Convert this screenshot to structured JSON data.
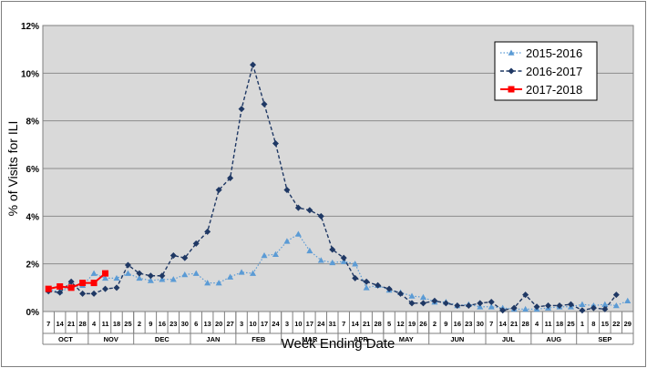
{
  "chart_data": {
    "type": "line",
    "ylabel": "% of Visits for ILI",
    "xlabel": "Week Ending Date",
    "ylim": [
      0,
      12
    ],
    "yticks": [
      0,
      2,
      4,
      6,
      8,
      10,
      12
    ],
    "ytick_labels": [
      "0%",
      "2%",
      "4%",
      "6%",
      "8%",
      "10%",
      "12%"
    ],
    "grid": true,
    "plot_background": "#d9d9d9",
    "legend_position": "top-right",
    "week_labels": [
      "7",
      "14",
      "21",
      "28",
      "4",
      "11",
      "18",
      "25",
      "2",
      "9",
      "16",
      "23",
      "30",
      "6",
      "13",
      "20",
      "27",
      "3",
      "10",
      "17",
      "24",
      "3",
      "10",
      "17",
      "24",
      "31",
      "7",
      "14",
      "21",
      "28",
      "5",
      "12",
      "19",
      "26",
      "2",
      "9",
      "16",
      "23",
      "30",
      "7",
      "14",
      "21",
      "28",
      "4",
      "11",
      "18",
      "25",
      "1",
      "8",
      "15",
      "22",
      "29"
    ],
    "month_labels": [
      {
        "label": "OCT",
        "start": 0,
        "span": 4
      },
      {
        "label": "NOV",
        "start": 4,
        "span": 4
      },
      {
        "label": "DEC",
        "start": 8,
        "span": 5
      },
      {
        "label": "JAN",
        "start": 13,
        "span": 4
      },
      {
        "label": "FEB",
        "start": 17,
        "span": 4
      },
      {
        "label": "MAR",
        "start": 21,
        "span": 5
      },
      {
        "label": "APR",
        "start": 26,
        "span": 4
      },
      {
        "label": "MAY",
        "start": 30,
        "span": 4
      },
      {
        "label": "JUN",
        "start": 34,
        "span": 5
      },
      {
        "label": "JUL",
        "start": 39,
        "span": 4
      },
      {
        "label": "AUG",
        "start": 43,
        "span": 4
      },
      {
        "label": "SEP",
        "start": 47,
        "span": 5
      }
    ],
    "series": [
      {
        "name": "2015-2016",
        "color": "#5b9bd5",
        "marker": "triangle",
        "line": "dotted",
        "values": [
          0.9,
          0.85,
          1.0,
          1.1,
          1.6,
          1.4,
          1.4,
          1.6,
          1.4,
          1.3,
          1.35,
          1.35,
          1.55,
          1.6,
          1.2,
          1.2,
          1.45,
          1.65,
          1.6,
          2.35,
          2.4,
          2.95,
          3.25,
          2.55,
          2.15,
          2.05,
          2.1,
          2.0,
          1.0,
          1.1,
          0.9,
          0.8,
          0.65,
          0.6,
          0.4,
          0.4,
          0.25,
          0.3,
          0.2,
          0.2,
          0.15,
          0.1,
          0.1,
          0.1,
          0.15,
          0.2,
          0.2,
          0.3,
          0.25,
          0.3,
          0.25,
          0.45
        ]
      },
      {
        "name": "2016-2017",
        "color": "#1f3864",
        "marker": "diamond",
        "line": "dashed",
        "values": [
          0.85,
          0.8,
          1.25,
          0.75,
          0.75,
          0.95,
          1.0,
          1.95,
          1.6,
          1.5,
          1.5,
          2.35,
          2.25,
          2.85,
          3.35,
          5.1,
          5.6,
          8.5,
          10.35,
          8.7,
          7.05,
          5.1,
          4.35,
          4.25,
          4.0,
          2.6,
          2.25,
          1.4,
          1.25,
          1.1,
          0.95,
          0.75,
          0.35,
          0.35,
          0.45,
          0.35,
          0.25,
          0.25,
          0.35,
          0.4,
          0.05,
          0.15,
          0.7,
          0.2,
          0.25,
          0.25,
          0.3,
          0.05,
          0.15,
          0.1,
          0.7,
          null
        ]
      },
      {
        "name": "2017-2018",
        "color": "#ff0000",
        "marker": "square",
        "line": "solid",
        "values": [
          0.95,
          1.05,
          1.0,
          1.2,
          1.2,
          1.6
        ]
      }
    ]
  }
}
